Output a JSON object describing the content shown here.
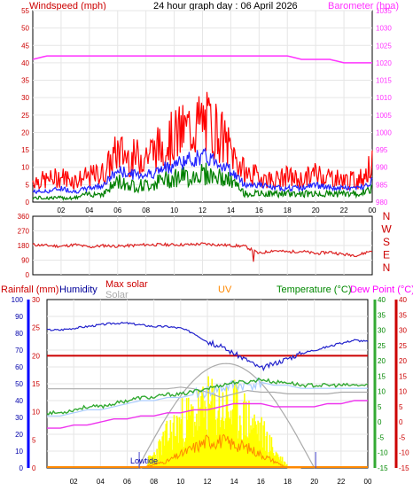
{
  "header": {
    "windspeed_label": "Windspeed (mph)",
    "title": "24 hour graph day : 06 April 2026",
    "barometer_label": "Barometer (hpa)"
  },
  "legend": {
    "rainfall": "Rainfall (mm)",
    "humidity": "Humidity",
    "max_solar": "Max solar",
    "solar": "Solar",
    "uv": "UV",
    "temperature": "Temperature (°C)",
    "dew_point": "Dew Point (°C)",
    "sunrise_marker": "Lowtide"
  },
  "colors": {
    "wind_avg": "#ff0000",
    "wind_gust": "#2222ff",
    "wind_low": "#008000",
    "barometer": "#ff33ff",
    "direction": "#dd2222",
    "humidity": "#2222cc",
    "rainfall_axis": "#0000ff",
    "temperature": "#33aa33",
    "dew_point": "#ee0000",
    "solar": "#ffff00",
    "uv": "#ff8800",
    "max_solar": "#aaaaaa",
    "light_temp": "#aaccff"
  },
  "chart_data": [
    {
      "type": "line",
      "name": "wind_barometer",
      "x_ticks": [
        "02",
        "04",
        "06",
        "08",
        "10",
        "12",
        "14",
        "16",
        "18",
        "20",
        "22",
        "00"
      ],
      "left_axis": {
        "label": "Windspeed (mph)",
        "ticks": [
          0,
          5,
          10,
          15,
          20,
          25,
          30,
          35,
          40,
          45,
          50,
          55
        ],
        "range": [
          0,
          55
        ]
      },
      "right_axis": {
        "label": "Barometer (hpa)",
        "ticks": [
          980,
          985,
          990,
          995,
          1000,
          1005,
          1010,
          1015,
          1020,
          1025,
          1030,
          1035
        ],
        "range": [
          980,
          1035
        ]
      },
      "hours": [
        0,
        1,
        2,
        3,
        4,
        5,
        6,
        7,
        8,
        9,
        10,
        11,
        12,
        13,
        14,
        15,
        16,
        17,
        18,
        19,
        20,
        21,
        22,
        23,
        24
      ],
      "series": [
        {
          "key": "gust",
          "values": [
            6,
            6,
            7,
            6,
            7,
            8,
            14,
            12,
            13,
            15,
            18,
            20,
            22,
            20,
            14,
            8,
            7,
            6,
            7,
            6,
            8,
            7,
            6,
            6,
            10
          ]
        },
        {
          "key": "average",
          "values": [
            3,
            3,
            4,
            3,
            4,
            5,
            9,
            8,
            8,
            9,
            11,
            12,
            13,
            12,
            9,
            5,
            5,
            4,
            4,
            4,
            5,
            4,
            4,
            4,
            6
          ]
        },
        {
          "key": "low",
          "values": [
            1,
            1,
            1,
            1,
            2,
            2,
            5,
            4,
            4,
            5,
            6,
            6,
            7,
            6,
            5,
            2,
            2,
            2,
            2,
            2,
            2,
            2,
            2,
            2,
            3
          ]
        },
        {
          "key": "barometer",
          "values": [
            1021,
            1022,
            1022,
            1022,
            1022,
            1022,
            1022,
            1022,
            1022,
            1022,
            1022,
            1022,
            1022,
            1022,
            1022,
            1022,
            1022,
            1022,
            1022,
            1021,
            1021,
            1021,
            1020,
            1020,
            1020
          ]
        }
      ]
    },
    {
      "type": "line",
      "name": "wind_direction",
      "left_axis": {
        "ticks": [
          0,
          90,
          180,
          270,
          360
        ],
        "range": [
          0,
          360
        ]
      },
      "right_axis": {
        "ticks": [
          "N",
          "W",
          "S",
          "E",
          "N"
        ]
      },
      "hours": [
        0,
        1,
        2,
        3,
        4,
        5,
        6,
        7,
        8,
        9,
        10,
        11,
        12,
        13,
        14,
        15,
        16,
        17,
        18,
        19,
        20,
        21,
        22,
        23,
        24
      ],
      "values": [
        185,
        180,
        175,
        185,
        170,
        180,
        175,
        180,
        185,
        185,
        185,
        185,
        190,
        185,
        180,
        175,
        130,
        150,
        140,
        145,
        130,
        140,
        125,
        120,
        150
      ]
    },
    {
      "type": "line",
      "name": "weather_combined",
      "x_ticks": [
        "02",
        "04",
        "06",
        "08",
        "10",
        "12",
        "14",
        "16",
        "18",
        "20",
        "22",
        "00"
      ],
      "humidity_axis": {
        "ticks": [
          0,
          10,
          20,
          30,
          40,
          50,
          60,
          70,
          80,
          90,
          100
        ],
        "range": [
          0,
          100
        ]
      },
      "rainfall_axis": {
        "ticks": [
          0,
          5,
          10,
          15,
          20,
          25,
          30
        ],
        "range": [
          0,
          30
        ]
      },
      "temperature_axis": {
        "ticks": [
          -15,
          -10,
          -5,
          0,
          5,
          10,
          15,
          20,
          25,
          30,
          35,
          40
        ],
        "range": [
          -15,
          40
        ]
      },
      "dew_point_axis": {
        "ticks": [
          -15,
          -10,
          -5,
          0,
          5,
          10,
          15,
          20,
          25,
          30,
          35,
          40
        ],
        "range": [
          -15,
          40
        ]
      },
      "hours": [
        0,
        1,
        2,
        3,
        4,
        5,
        6,
        7,
        8,
        9,
        10,
        11,
        12,
        13,
        14,
        15,
        16,
        17,
        18,
        19,
        20,
        21,
        22,
        23,
        24
      ],
      "series": [
        {
          "key": "humidity",
          "values": [
            82,
            82,
            83,
            84,
            85,
            86,
            86,
            85,
            84,
            84,
            83,
            80,
            75,
            72,
            68,
            64,
            59,
            62,
            65,
            68,
            70,
            72,
            74,
            76,
            75
          ]
        },
        {
          "key": "rainfall_total",
          "values": [
            20,
            20,
            20,
            20,
            20,
            20,
            20,
            20,
            20,
            20,
            20,
            20,
            20,
            20,
            20,
            20,
            20,
            20,
            20,
            20,
            20,
            20,
            20,
            20,
            20
          ]
        },
        {
          "key": "temperature",
          "values": [
            3,
            3,
            4,
            5,
            5,
            6,
            7,
            8,
            8,
            9,
            9,
            10,
            11,
            12,
            13,
            13,
            14,
            13,
            13,
            12,
            12,
            12,
            12,
            12,
            12
          ]
        },
        {
          "key": "dew_point",
          "values": [
            -2,
            -2,
            -1,
            -1,
            0,
            1,
            1,
            2,
            2,
            3,
            3,
            4,
            4,
            5,
            6,
            6,
            6,
            5,
            5,
            5,
            5,
            6,
            6,
            7,
            7
          ]
        },
        {
          "key": "max_solar",
          "values": [
            0,
            0,
            0,
            0,
            0,
            0,
            0,
            2,
            5,
            8,
            10,
            11,
            11,
            11,
            10,
            8,
            5,
            2,
            0,
            0,
            0,
            0,
            0,
            0,
            0
          ]
        },
        {
          "key": "solar_percent",
          "values": [
            0,
            0,
            0,
            0,
            0,
            0,
            0,
            1,
            10,
            24,
            34,
            38,
            44,
            44,
            42,
            36,
            26,
            12,
            1,
            0,
            0,
            0,
            0,
            0,
            0
          ]
        },
        {
          "key": "uv",
          "values": [
            0,
            0,
            0,
            0,
            0,
            0,
            0,
            0,
            0.5,
            1,
            2,
            3,
            4,
            4,
            3.5,
            3,
            2,
            1,
            0,
            0,
            0,
            0,
            0,
            0,
            0
          ]
        }
      ]
    }
  ]
}
